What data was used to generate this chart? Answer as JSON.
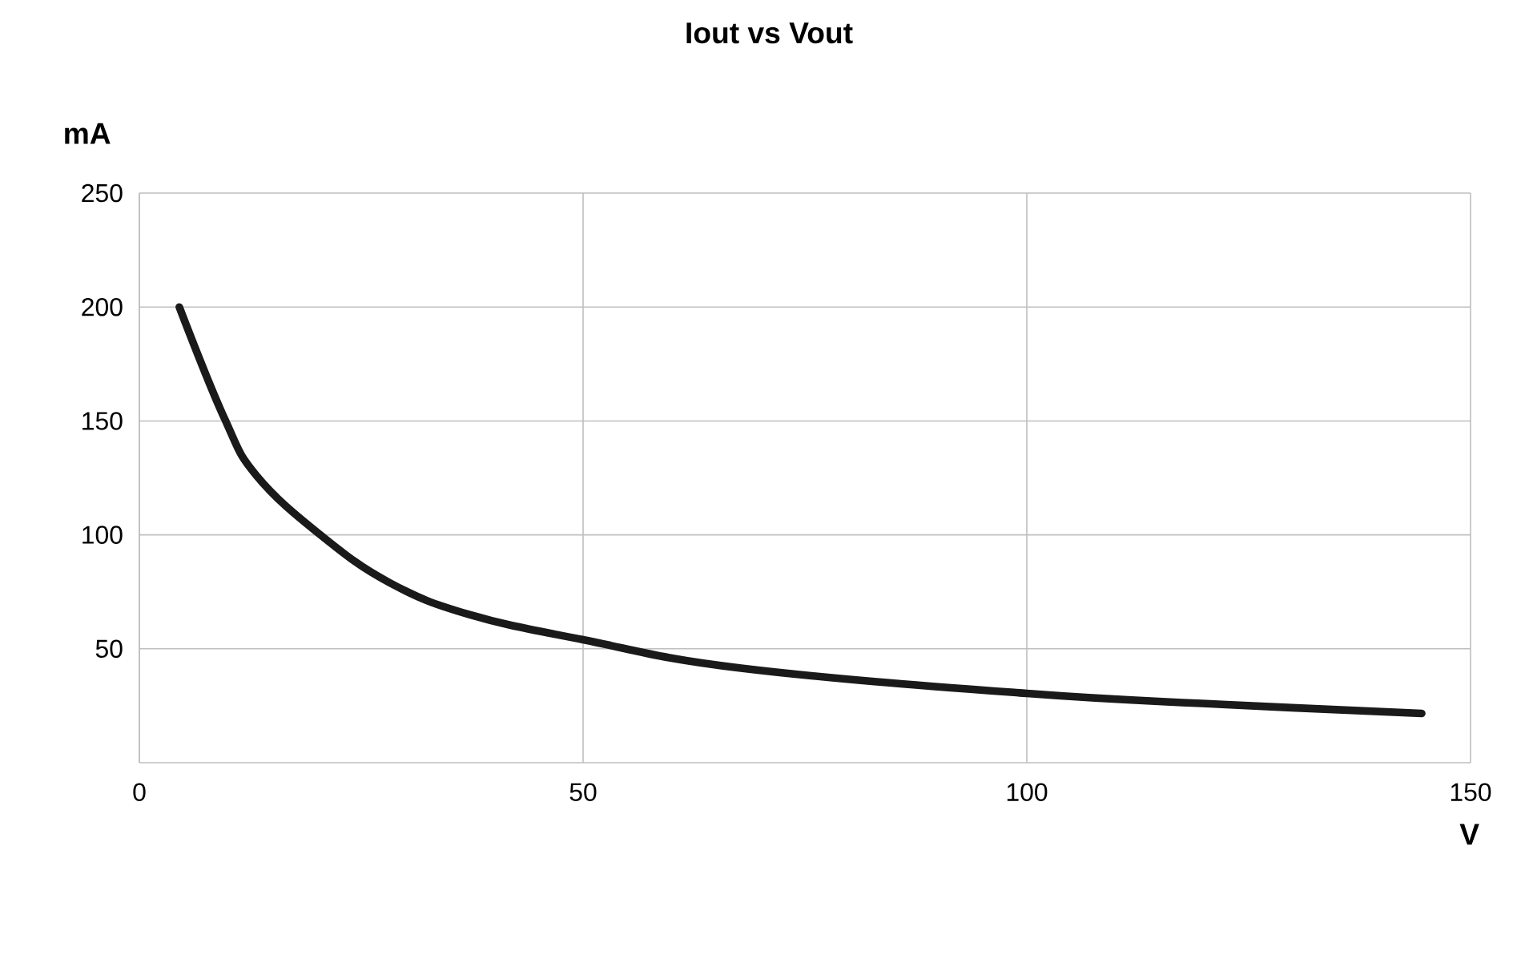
{
  "chart_data": {
    "type": "line",
    "title": "Iout vs Vout",
    "xlabel": "V",
    "ylabel": "mA",
    "x": [
      4.5,
      9.6,
      13.2,
      20.4,
      28.2,
      37.2,
      50,
      67.8,
      100,
      122,
      144.5
    ],
    "values": [
      200,
      151,
      126,
      100,
      79,
      65,
      54,
      41.5,
      30.4,
      25.6,
      21.6
    ],
    "color": "#1a1a1a",
    "line_style": "solid",
    "xlim": [
      0,
      150
    ],
    "ylim": [
      0,
      250
    ],
    "xticks": [
      0,
      50,
      100,
      150
    ],
    "yticks": [
      50,
      100,
      150,
      200,
      250
    ],
    "grid": true
  }
}
